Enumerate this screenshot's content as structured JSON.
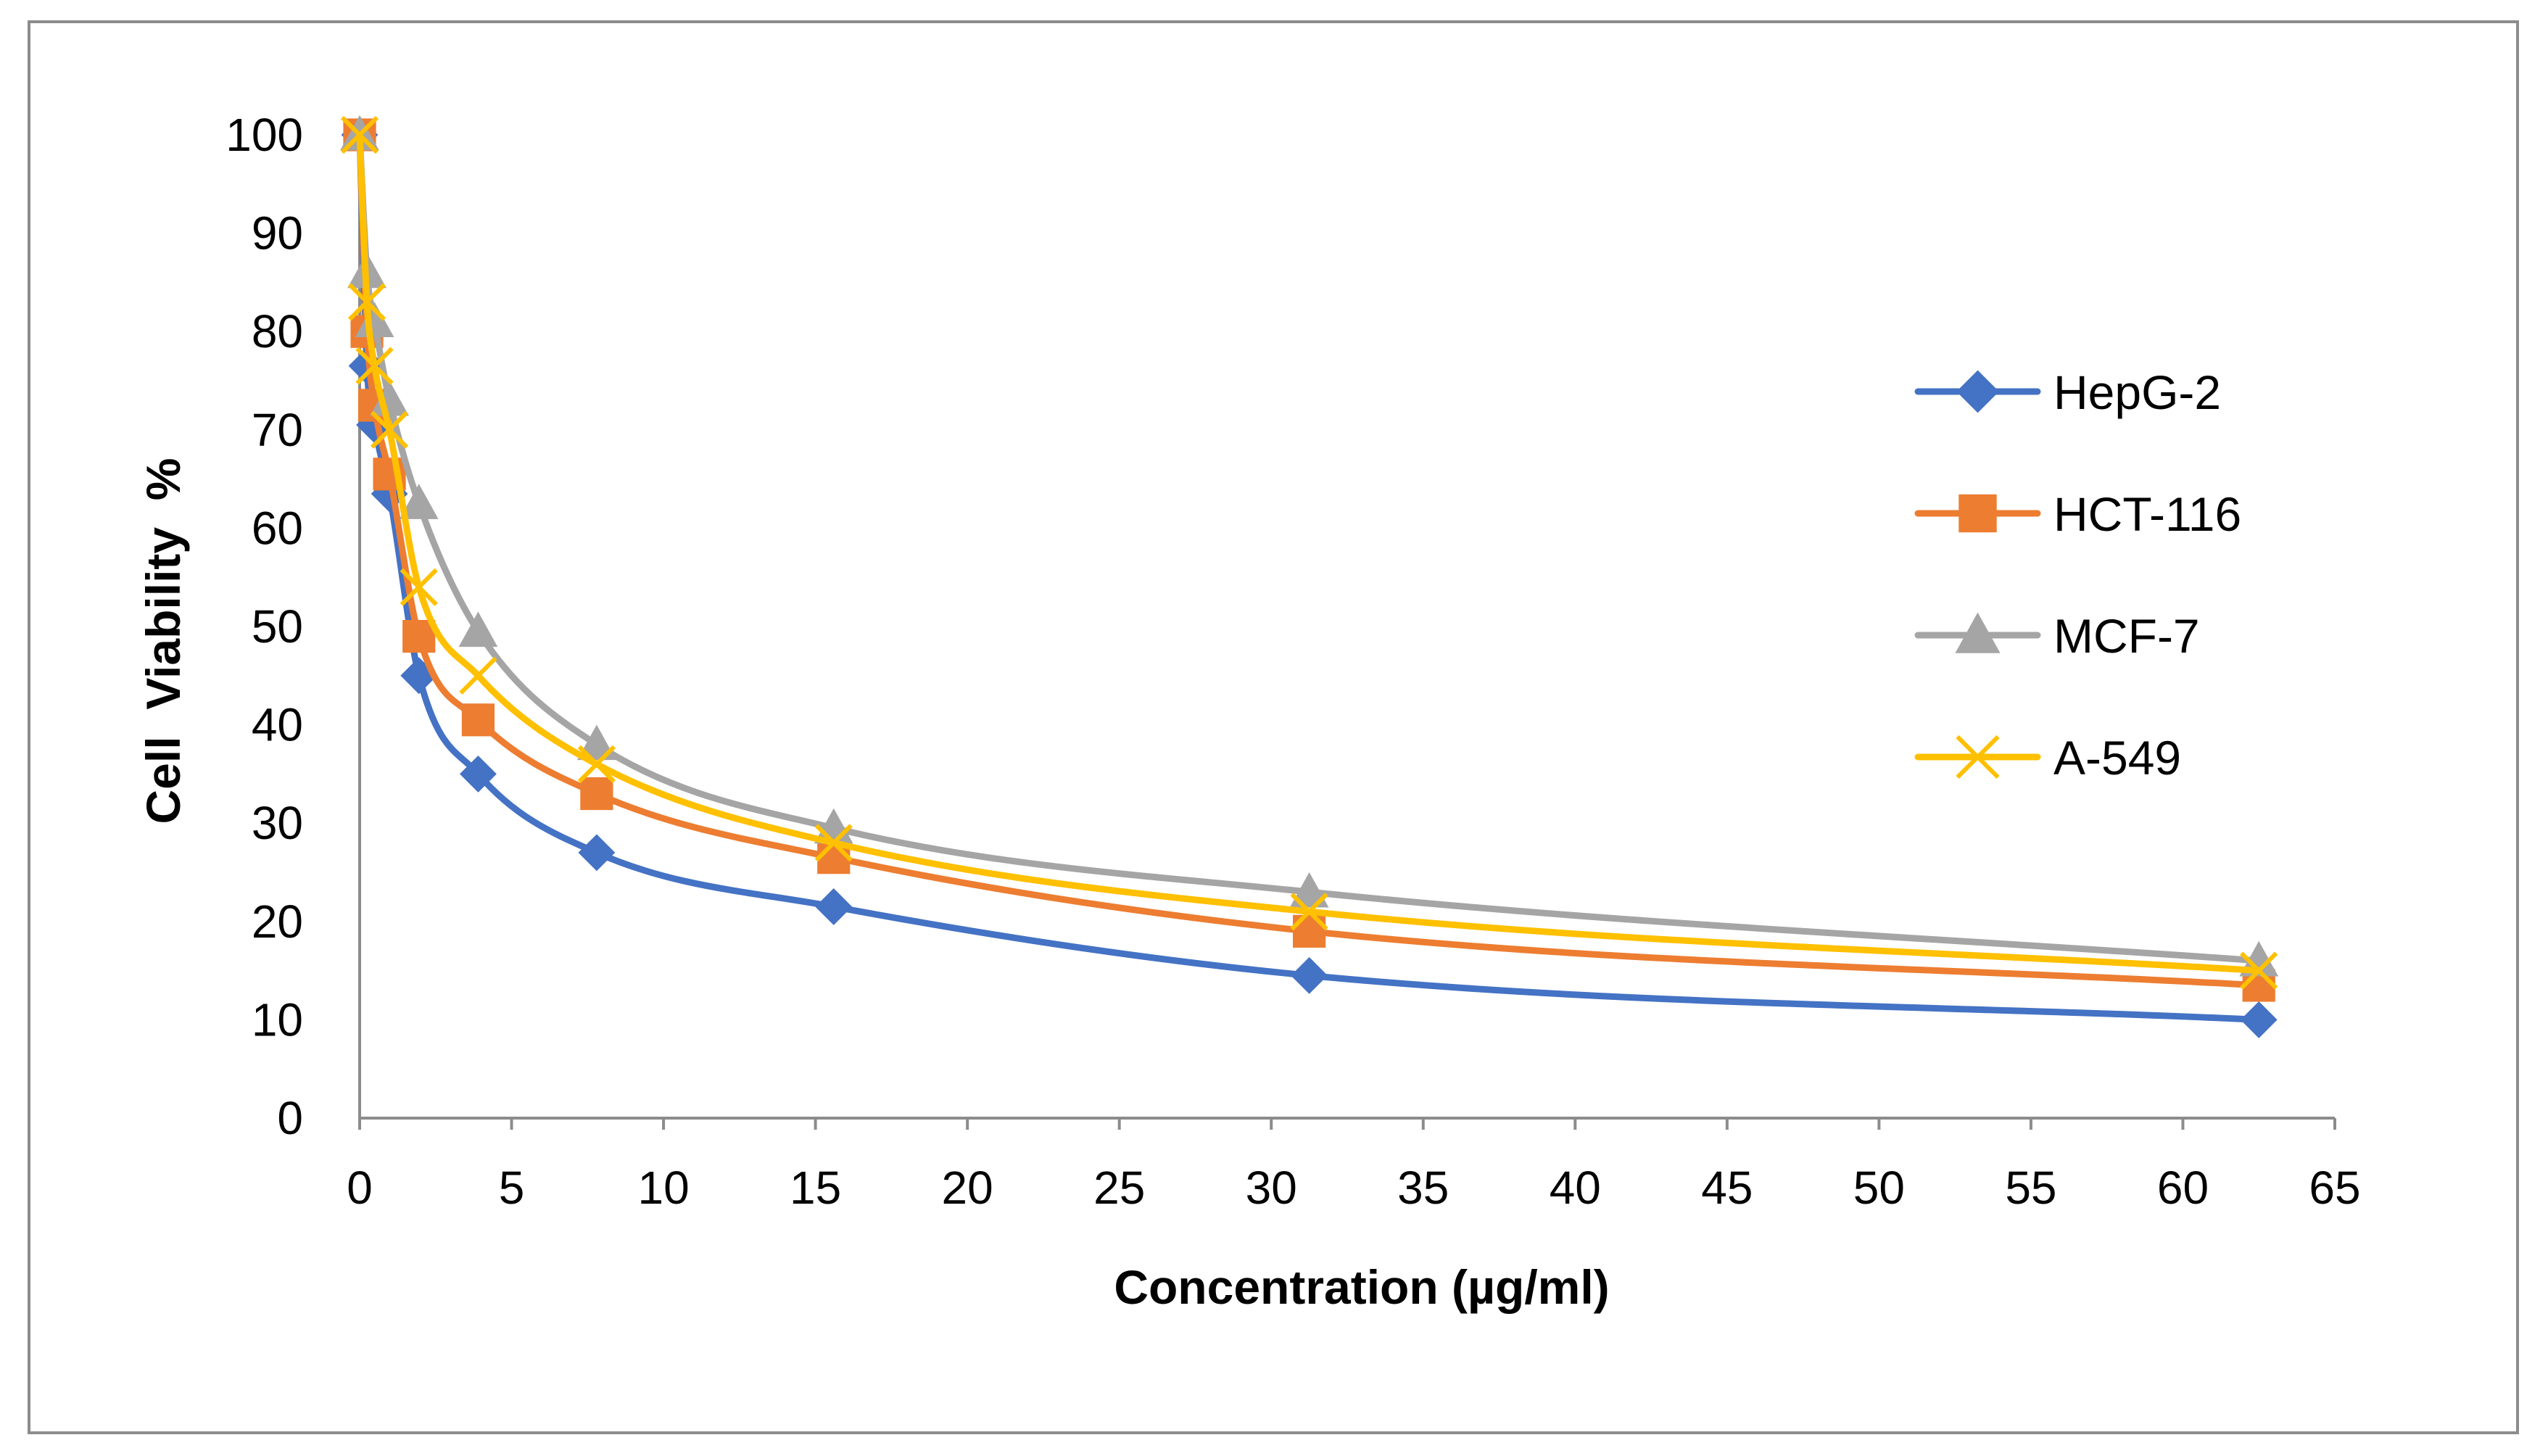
{
  "chart_data": {
    "type": "line",
    "title": "",
    "xlabel": "Concentration (µg/ml)",
    "ylabel": "Cell  Viability  %",
    "xlim": [
      0,
      65
    ],
    "ylim": [
      0,
      100
    ],
    "x_ticks": [
      0,
      5,
      10,
      15,
      20,
      25,
      30,
      35,
      40,
      45,
      50,
      55,
      60,
      65
    ],
    "y_ticks": [
      0,
      10,
      20,
      30,
      40,
      50,
      60,
      70,
      80,
      90,
      100
    ],
    "grid": false,
    "legend_position": "right",
    "smooth": true,
    "x": [
      0,
      0.24,
      0.49,
      0.98,
      1.95,
      3.9,
      7.8,
      15.6,
      31.25,
      62.5
    ],
    "series": [
      {
        "name": "HepG-2",
        "color": "#4472C4",
        "marker": "diamond",
        "values": [
          100,
          76.5,
          70.5,
          63.5,
          45.0,
          35.0,
          27.0,
          21.5,
          14.5,
          10.0
        ]
      },
      {
        "name": "HCT-116",
        "color": "#ED7D31",
        "marker": "square",
        "values": [
          100,
          80.0,
          72.5,
          65.5,
          49.0,
          40.5,
          33.0,
          26.5,
          19.0,
          13.5
        ]
      },
      {
        "name": "MCF-7",
        "color": "#A5A5A5",
        "marker": "triangle",
        "values": [
          100,
          86.0,
          81.0,
          73.0,
          62.5,
          49.5,
          38.0,
          29.5,
          23.0,
          16.0
        ]
      },
      {
        "name": "A-549",
        "color": "#FFC000",
        "marker": "x",
        "values": [
          100,
          83.0,
          76.5,
          70.0,
          54.0,
          45.0,
          36.0,
          28.0,
          21.0,
          15.0
        ]
      }
    ]
  }
}
